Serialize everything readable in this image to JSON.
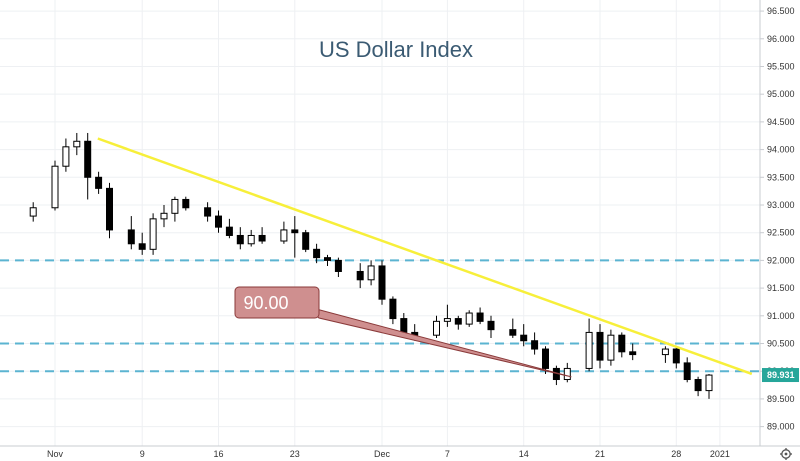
{
  "chart_data": {
    "type": "candlestick",
    "title": "US Dollar Index",
    "xlabel": "",
    "ylabel": "",
    "ylim": [
      88.65,
      96.7
    ],
    "y_ticks": [
      "96.500",
      "96.000",
      "95.500",
      "95.000",
      "94.500",
      "94.000",
      "93.500",
      "93.000",
      "92.500",
      "92.000",
      "91.500",
      "91.000",
      "90.500",
      "90.000",
      "89.500",
      "89.000"
    ],
    "x_ticks": [
      "Nov",
      "9",
      "16",
      "23",
      "Dec",
      "7",
      "14",
      "21",
      "28",
      "2021"
    ],
    "grid": true,
    "last_price": "89.931",
    "up_color": "#ffffff",
    "down_color": "#000000",
    "trendline_color": "#f7ef3a",
    "level_color": "#5bb4d1",
    "horizontal_levels": [
      92.0,
      90.5,
      90.0
    ],
    "trendline": [
      {
        "x": "Nov 3",
        "y": 94.2
      },
      {
        "x": "Jan 2",
        "y": 89.95
      }
    ],
    "callout": {
      "text": "90.00",
      "points_to": {
        "x": "Dec 17",
        "y": 89.97
      },
      "color": "#cf8f8f"
    },
    "series": [
      {
        "values": [
          {
            "x": "Oct 30",
            "o": 92.8,
            "h": 93.05,
            "l": 92.7,
            "c": 92.95
          },
          {
            "x": "Nov 1",
            "o": 92.95,
            "h": 93.8,
            "l": 92.9,
            "c": 93.7
          },
          {
            "x": "Nov 2",
            "o": 93.7,
            "h": 94.2,
            "l": 93.6,
            "c": 94.05
          },
          {
            "x": "Nov 3",
            "o": 94.05,
            "h": 94.3,
            "l": 93.9,
            "c": 94.15
          },
          {
            "x": "Nov 4",
            "o": 94.15,
            "h": 94.3,
            "l": 93.1,
            "c": 93.5
          },
          {
            "x": "Nov 5",
            "o": 93.5,
            "h": 93.6,
            "l": 93.2,
            "c": 93.3
          },
          {
            "x": "Nov 6",
            "o": 93.3,
            "h": 93.4,
            "l": 92.4,
            "c": 92.55
          },
          {
            "x": "Nov 8",
            "o": 92.55,
            "h": 92.8,
            "l": 92.2,
            "c": 92.3
          },
          {
            "x": "Nov 9",
            "o": 92.3,
            "h": 92.5,
            "l": 92.1,
            "c": 92.2
          },
          {
            "x": "Nov 10",
            "o": 92.2,
            "h": 92.85,
            "l": 92.1,
            "c": 92.75
          },
          {
            "x": "Nov 11",
            "o": 92.75,
            "h": 93.0,
            "l": 92.6,
            "c": 92.85
          },
          {
            "x": "Nov 12",
            "o": 92.85,
            "h": 93.15,
            "l": 92.7,
            "c": 93.1
          },
          {
            "x": "Nov 13",
            "o": 93.1,
            "h": 93.15,
            "l": 92.9,
            "c": 92.95
          },
          {
            "x": "Nov 15",
            "o": 92.95,
            "h": 93.05,
            "l": 92.7,
            "c": 92.8
          },
          {
            "x": "Nov 16",
            "o": 92.8,
            "h": 92.9,
            "l": 92.5,
            "c": 92.6
          },
          {
            "x": "Nov 17",
            "o": 92.6,
            "h": 92.75,
            "l": 92.4,
            "c": 92.45
          },
          {
            "x": "Nov 18",
            "o": 92.45,
            "h": 92.6,
            "l": 92.2,
            "c": 92.3
          },
          {
            "x": "Nov 19",
            "o": 92.3,
            "h": 92.55,
            "l": 92.25,
            "c": 92.45
          },
          {
            "x": "Nov 20",
            "o": 92.45,
            "h": 92.6,
            "l": 92.3,
            "c": 92.35
          },
          {
            "x": "Nov 22",
            "o": 92.35,
            "h": 92.7,
            "l": 92.3,
            "c": 92.55
          },
          {
            "x": "Nov 23",
            "o": 92.55,
            "h": 92.8,
            "l": 92.05,
            "c": 92.5
          },
          {
            "x": "Nov 24",
            "o": 92.5,
            "h": 92.55,
            "l": 92.15,
            "c": 92.2
          },
          {
            "x": "Nov 25",
            "o": 92.2,
            "h": 92.3,
            "l": 91.95,
            "c": 92.05
          },
          {
            "x": "Nov 26",
            "o": 92.05,
            "h": 92.1,
            "l": 91.9,
            "c": 92.0
          },
          {
            "x": "Nov 27",
            "o": 92.0,
            "h": 92.05,
            "l": 91.7,
            "c": 91.8
          },
          {
            "x": "Nov 29",
            "o": 91.8,
            "h": 91.95,
            "l": 91.5,
            "c": 91.65
          },
          {
            "x": "Nov 30",
            "o": 91.65,
            "h": 92.0,
            "l": 91.55,
            "c": 91.9
          },
          {
            "x": "Dec 1",
            "o": 91.9,
            "h": 92.0,
            "l": 91.2,
            "c": 91.3
          },
          {
            "x": "Dec 2",
            "o": 91.3,
            "h": 91.35,
            "l": 90.85,
            "c": 90.95
          },
          {
            "x": "Dec 3",
            "o": 90.95,
            "h": 91.05,
            "l": 90.6,
            "c": 90.7
          },
          {
            "x": "Dec 4",
            "o": 90.7,
            "h": 90.85,
            "l": 90.55,
            "c": 90.65
          },
          {
            "x": "Dec 6",
            "o": 90.65,
            "h": 91.0,
            "l": 90.6,
            "c": 90.9
          },
          {
            "x": "Dec 7",
            "o": 90.9,
            "h": 91.2,
            "l": 90.8,
            "c": 90.95
          },
          {
            "x": "Dec 8",
            "o": 90.95,
            "h": 91.0,
            "l": 90.75,
            "c": 90.85
          },
          {
            "x": "Dec 9",
            "o": 90.85,
            "h": 91.1,
            "l": 90.8,
            "c": 91.05
          },
          {
            "x": "Dec 10",
            "o": 91.05,
            "h": 91.15,
            "l": 90.85,
            "c": 90.9
          },
          {
            "x": "Dec 11",
            "o": 90.9,
            "h": 91.0,
            "l": 90.6,
            "c": 90.75
          },
          {
            "x": "Dec 13",
            "o": 90.75,
            "h": 90.95,
            "l": 90.6,
            "c": 90.65
          },
          {
            "x": "Dec 14",
            "o": 90.65,
            "h": 90.85,
            "l": 90.45,
            "c": 90.55
          },
          {
            "x": "Dec 15",
            "o": 90.55,
            "h": 90.7,
            "l": 90.3,
            "c": 90.4
          },
          {
            "x": "Dec 16",
            "o": 90.4,
            "h": 90.45,
            "l": 89.95,
            "c": 90.05
          },
          {
            "x": "Dec 17",
            "o": 90.05,
            "h": 90.1,
            "l": 89.75,
            "c": 89.85
          },
          {
            "x": "Dec 18",
            "o": 89.85,
            "h": 90.15,
            "l": 89.8,
            "c": 90.05
          },
          {
            "x": "Dec 20",
            "o": 90.05,
            "h": 90.95,
            "l": 90.0,
            "c": 90.7
          },
          {
            "x": "Dec 21",
            "o": 90.7,
            "h": 90.85,
            "l": 90.05,
            "c": 90.2
          },
          {
            "x": "Dec 22",
            "o": 90.2,
            "h": 90.75,
            "l": 90.1,
            "c": 90.65
          },
          {
            "x": "Dec 23",
            "o": 90.65,
            "h": 90.7,
            "l": 90.25,
            "c": 90.35
          },
          {
            "x": "Dec 24",
            "o": 90.35,
            "h": 90.5,
            "l": 90.2,
            "c": 90.3
          },
          {
            "x": "Dec 27",
            "o": 90.3,
            "h": 90.45,
            "l": 90.15,
            "c": 90.4
          },
          {
            "x": "Dec 28",
            "o": 90.4,
            "h": 90.45,
            "l": 90.05,
            "c": 90.15
          },
          {
            "x": "Dec 29",
            "o": 90.15,
            "h": 90.25,
            "l": 89.8,
            "c": 89.85
          },
          {
            "x": "Dec 30",
            "o": 89.85,
            "h": 89.9,
            "l": 89.55,
            "c": 89.65
          },
          {
            "x": "Dec 31",
            "o": 89.65,
            "h": 89.95,
            "l": 89.5,
            "c": 89.93
          }
        ]
      }
    ]
  }
}
